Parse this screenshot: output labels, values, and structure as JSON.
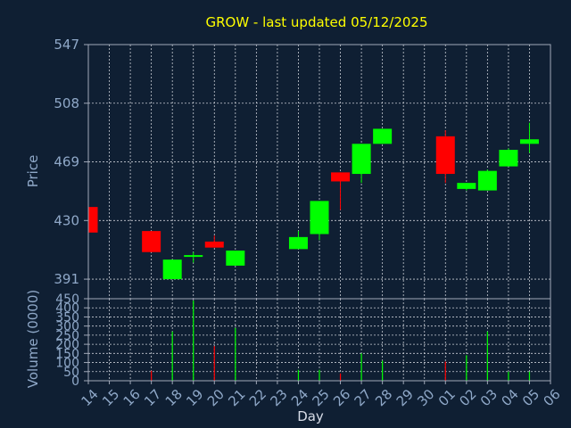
{
  "chart_data": [
    {
      "type": "candlestick",
      "title": "GROW - last updated 05/12/2025",
      "ylabel": "Price",
      "ylim": [
        378,
        547
      ],
      "yticks": [
        391,
        430,
        469,
        508,
        547
      ],
      "colors": {
        "up": "#00ff00",
        "down": "#ff0000"
      },
      "grid": true,
      "x": [
        "14",
        "15",
        "16",
        "17",
        "18",
        "19",
        "20",
        "21",
        "22",
        "23",
        "24",
        "25",
        "26",
        "27",
        "28",
        "29",
        "30",
        "01",
        "02",
        "03",
        "04",
        "05",
        "06"
      ],
      "candles": [
        {
          "x": "14",
          "open": 439,
          "high": 439,
          "low": 422,
          "close": 422
        },
        {
          "x": "17",
          "open": 423,
          "high": 423,
          "low": 409,
          "close": 409
        },
        {
          "x": "18",
          "open": 391,
          "high": 404,
          "low": 391,
          "close": 404
        },
        {
          "x": "19",
          "open": 406,
          "high": 409,
          "low": 402,
          "close": 407
        },
        {
          "x": "20",
          "open": 416,
          "high": 420,
          "low": 412,
          "close": 412
        },
        {
          "x": "21",
          "open": 400,
          "high": 410,
          "low": 400,
          "close": 410
        },
        {
          "x": "24",
          "open": 411,
          "high": 423,
          "low": 411,
          "close": 419
        },
        {
          "x": "25",
          "open": 421,
          "high": 443,
          "low": 417,
          "close": 443
        },
        {
          "x": "26",
          "open": 462,
          "high": 462,
          "low": 437,
          "close": 456
        },
        {
          "x": "27",
          "open": 461,
          "high": 481,
          "low": 455,
          "close": 481
        },
        {
          "x": "28",
          "open": 481,
          "high": 491,
          "low": 481,
          "close": 491
        },
        {
          "x": "01",
          "open": 486,
          "high": 490,
          "low": 455,
          "close": 461
        },
        {
          "x": "02",
          "open": 451,
          "high": 455,
          "low": 450,
          "close": 455
        },
        {
          "x": "03",
          "open": 450,
          "high": 464,
          "low": 450,
          "close": 463
        },
        {
          "x": "04",
          "open": 466,
          "high": 478,
          "low": 466,
          "close": 477
        },
        {
          "x": "05",
          "open": 481,
          "high": 495,
          "low": 475,
          "close": 484
        }
      ]
    },
    {
      "type": "bar",
      "ylabel": "Volume (0000)",
      "xlabel": "Day",
      "ylim": [
        0,
        450
      ],
      "yticks": [
        0,
        50,
        100,
        150,
        200,
        250,
        300,
        350,
        400,
        450
      ],
      "categories": [
        "14",
        "15",
        "16",
        "17",
        "18",
        "19",
        "20",
        "21",
        "22",
        "23",
        "24",
        "25",
        "26",
        "27",
        "28",
        "29",
        "30",
        "01",
        "02",
        "03",
        "04",
        "05",
        "06"
      ],
      "values": [
        0,
        0,
        0,
        55,
        270,
        440,
        190,
        290,
        0,
        0,
        60,
        60,
        40,
        150,
        110,
        0,
        0,
        105,
        140,
        270,
        50,
        50,
        0
      ],
      "bar_colors": [
        "#00ff00",
        "#00ff00",
        "#00ff00",
        "#ff0000",
        "#00ff00",
        "#00ff00",
        "#ff0000",
        "#00ff00",
        "#00ff00",
        "#00ff00",
        "#00ff00",
        "#00ff00",
        "#ff0000",
        "#00ff00",
        "#00ff00",
        "#00ff00",
        "#00ff00",
        "#ff0000",
        "#00ff00",
        "#00ff00",
        "#00ff00",
        "#00ff00",
        "#00ff00"
      ]
    }
  ]
}
